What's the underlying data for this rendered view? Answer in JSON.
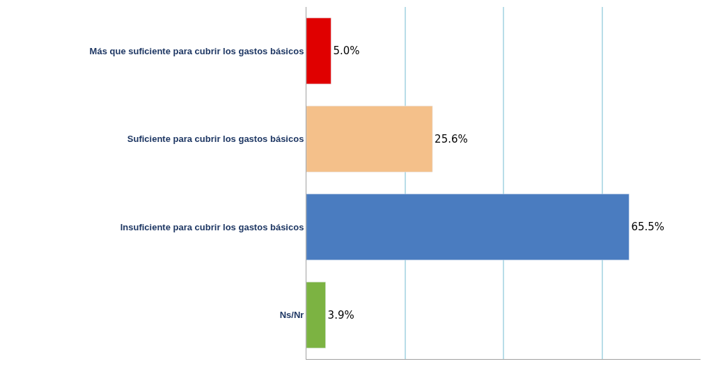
{
  "chart_data": {
    "type": "bar",
    "orientation": "horizontal",
    "categories": [
      "Más que suficiente para cubrir los gastos básicos",
      "Suficiente para cubrir los gastos básicos",
      "Insuficiente para cubrir los gastos básicos",
      "Ns/Nr"
    ],
    "values": [
      5.0,
      25.6,
      65.5,
      3.9
    ],
    "colors": [
      "#e00000",
      "#f4c08a",
      "#4a7cc0",
      "#7cb342"
    ],
    "value_labels": [
      "5.0%",
      "25.6%",
      "65.5%",
      "3.9%"
    ],
    "xlim": [
      0,
      80
    ],
    "xticks": [
      {
        "value": 0,
        "label": null
      },
      {
        "value": 20,
        "label": null
      },
      {
        "value": 40,
        "label": null
      },
      {
        "value": 60,
        "label": null
      }
    ],
    "tick_labels": "y",
    "grid": "x",
    "legend": false
  }
}
